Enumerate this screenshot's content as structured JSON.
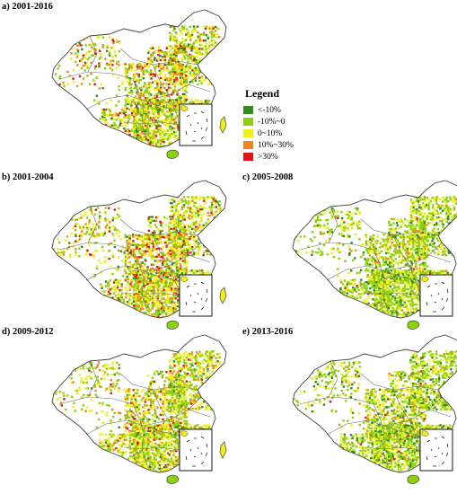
{
  "colors": {
    "class1": "#2e8b1e",
    "class2": "#8cd10a",
    "class3": "#f0ef18",
    "class4": "#f2831e",
    "class5": "#e01414",
    "boundary": "#444444"
  },
  "panels": [
    {
      "id": "a",
      "title": "a) 2001-2016",
      "weights": [
        0.08,
        0.32,
        0.38,
        0.13,
        0.09
      ]
    },
    {
      "id": "b",
      "title": "b) 2001-2004",
      "weights": [
        0.08,
        0.3,
        0.38,
        0.14,
        0.1
      ]
    },
    {
      "id": "c",
      "title": "c) 2005-2008",
      "weights": [
        0.12,
        0.52,
        0.3,
        0.05,
        0.01
      ]
    },
    {
      "id": "d",
      "title": "d) 2009-2012",
      "weights": [
        0.07,
        0.4,
        0.38,
        0.1,
        0.05
      ]
    },
    {
      "id": "e",
      "title": "e) 2013-2016",
      "weights": [
        0.12,
        0.48,
        0.34,
        0.05,
        0.01
      ]
    }
  ],
  "legend": {
    "title": "Legend",
    "items": [
      {
        "label": "<-10%",
        "color_key": "class1"
      },
      {
        "label": "-10%~0",
        "color_key": "class2"
      },
      {
        "label": "0~10%",
        "color_key": "class3"
      },
      {
        "label": "10%~30%",
        "color_key": "class4"
      },
      {
        "label": ">30%",
        "color_key": "class5"
      }
    ]
  }
}
